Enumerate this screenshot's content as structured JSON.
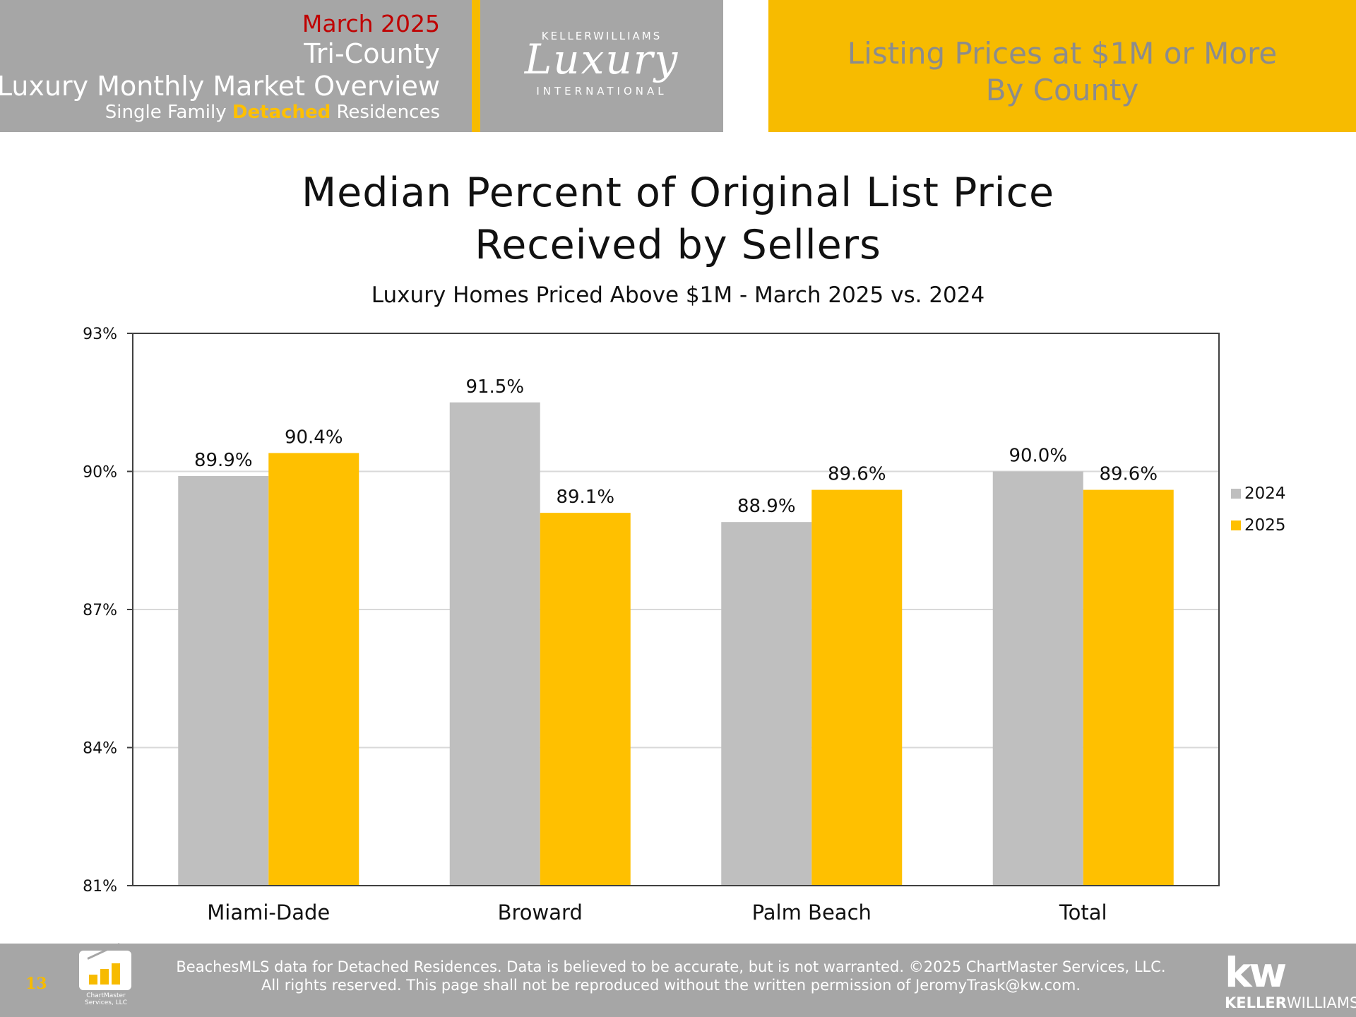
{
  "header": {
    "month": "March 2025",
    "region": "Tri-County",
    "title": "Luxury Monthly Market Overview",
    "subtitle_pre": "Single Family ",
    "subtitle_highlight": "Detached",
    "subtitle_post": " Residences",
    "logo_top": "KELLERWILLIAMS",
    "logo_main": "Luxury",
    "logo_bottom": "INTERNATIONAL",
    "right_line1": "Listing Prices at $1M or More",
    "right_line2": "By County"
  },
  "colors": {
    "header_gray": "#a6a6a6",
    "accent_yellow": "#f7bb00",
    "month_red": "#c00000",
    "series_2024": "#bfbfbf",
    "series_2025": "#ffc000"
  },
  "chart_data": {
    "type": "bar",
    "title_line1": "Median Percent of Original List Price",
    "title_line2": "Received by Sellers",
    "subtitle": "Luxury Homes Priced Above $1M - March 2025 vs. 2024",
    "categories": [
      "Miami-Dade",
      "Broward",
      "Palm Beach",
      "Total"
    ],
    "series": [
      {
        "name": "2024",
        "values": [
          89.9,
          91.5,
          88.9,
          90.0
        ],
        "labels": [
          "89.9%",
          "91.5%",
          "88.9%",
          "90.0%"
        ],
        "color": "#bfbfbf"
      },
      {
        "name": "2025",
        "values": [
          90.4,
          89.1,
          89.6,
          89.6
        ],
        "labels": [
          "90.4%",
          "89.1%",
          "89.6%",
          "89.6%"
        ],
        "color": "#ffc000"
      }
    ],
    "ylim": [
      81,
      93
    ],
    "yticks": [
      81,
      84,
      87,
      90,
      93
    ],
    "ytick_labels": [
      "81%",
      "84%",
      "87%",
      "90%",
      "93%"
    ],
    "grid": true,
    "legend": "right"
  },
  "footer": {
    "page_number": "13",
    "logo_text": "ChartMaster Services, LLC",
    "disclaimer_line1": "BeachesMLS data for Detached Residences.  Data is believed to be accurate, but is not warranted.   ©2025  ChartMaster Services, LLC.",
    "disclaimer_line2": "All rights reserved. This page shall not be reproduced without the written permission of JeromyTrask@kw.com.",
    "kw_mark": "kw",
    "kw_word_bold": "KELLER",
    "kw_word_rest": "WILLIAMS."
  }
}
